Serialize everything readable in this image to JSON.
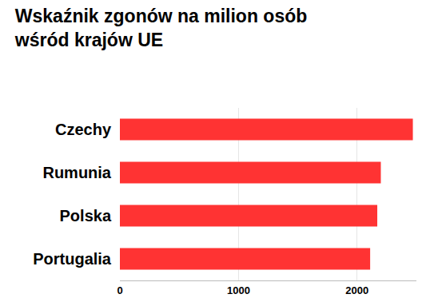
{
  "chart_data": {
    "type": "bar",
    "orientation": "horizontal",
    "title": "Wskaźnik zgonów na milion osób\nwśród krajów UE",
    "categories": [
      "Czechy",
      "Rumunia",
      "Polska",
      "Portugalia"
    ],
    "values": [
      2470,
      2200,
      2170,
      2110
    ],
    "color": "#ff3333",
    "xlim": [
      0,
      2500
    ],
    "xticks": [
      0,
      1000,
      2000
    ],
    "grid": true
  }
}
